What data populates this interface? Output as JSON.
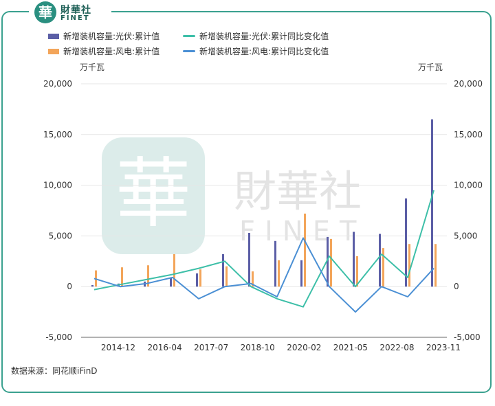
{
  "brand": {
    "seal": "華",
    "cn": "財華社",
    "en": "FINET"
  },
  "watermark": {
    "seal": "華",
    "cn": "財華社",
    "en": "FINET"
  },
  "units": {
    "left": "万千瓦",
    "right": "万千瓦"
  },
  "source": "数据来源：同花顺iFinD",
  "colors": {
    "solar_bar": "#5b5ea6",
    "wind_bar": "#f3a55a",
    "solar_line": "#3dbfa8",
    "wind_line": "#4a8fd4",
    "border": "#3aa18f"
  },
  "chart_data": {
    "type": "bar",
    "title": "",
    "xlabel": "",
    "ylabel": "万千瓦",
    "y2label": "万千瓦",
    "ylim": [
      -5000,
      20000
    ],
    "y2lim": [
      -5000,
      20000
    ],
    "yticks": [
      -5000,
      0,
      5000,
      10000,
      15000,
      20000
    ],
    "ytick_labels": [
      "-5,000",
      "0",
      "5,000",
      "10,000",
      "15,000",
      "20,000"
    ],
    "xtick_labels": [
      "2014-12",
      "2016-04",
      "2017-07",
      "2018-10",
      "2020-02",
      "2021-05",
      "2022-08",
      "2023-11"
    ],
    "grid": true,
    "legend_position": "top-left",
    "series": [
      {
        "name": "新增装机容量:光伏:累计值",
        "kind": "bar",
        "axis": "left",
        "values": [
          150,
          300,
          500,
          900,
          1300,
          3200,
          5300,
          4500,
          2600,
          4900,
          5400,
          5200,
          8700,
          16500
        ]
      },
      {
        "name": "新增装机容量:风电:累计值",
        "kind": "bar",
        "axis": "left",
        "values": [
          1600,
          1900,
          2100,
          3200,
          1700,
          2000,
          1500,
          2600,
          7200,
          4700,
          3000,
          3800,
          4200,
          4200
        ]
      },
      {
        "name": "新增装机容量:光伏:累计同比变化值",
        "kind": "line",
        "axis": "right",
        "values": [
          -300,
          200,
          700,
          1200,
          1800,
          2500,
          0,
          -1200,
          -2000,
          3000,
          0,
          3200,
          900,
          9500
        ]
      },
      {
        "name": "新增装机容量:风电:累计同比变化值",
        "kind": "line",
        "axis": "right",
        "values": [
          800,
          0,
          300,
          900,
          -1200,
          0,
          300,
          -1000,
          4800,
          0,
          -2500,
          0,
          -1000,
          1800
        ]
      }
    ]
  }
}
